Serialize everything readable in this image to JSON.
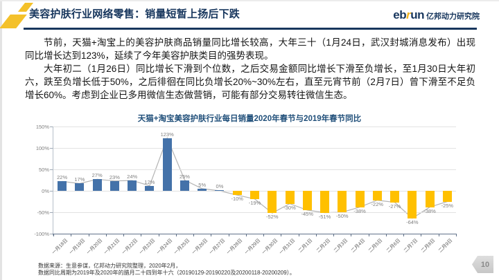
{
  "header": {
    "title": "美容护肤行业网络零售：销量短暂上扬后下跌",
    "brand": {
      "eb": "eb",
      "r": "r",
      "un": "un",
      "cn": "亿邦动力研究院"
    }
  },
  "paragraphs": [
    "节前，天猫+淘宝上的美容护肤商品销量同比增长较高，大年三十（1月24日，武汉封城消息发布）出现同比增长达到123%，延续了今年美容护肤类目的强势表现。",
    "大年初二（1月26日）同比增长下滑到个位数，之后交易金额同比增长下滑至负增长，至1月30日大年初六，跌至负增长低于50%，之后徘徊在同比负增长20%~30%左右，直至元宵节前（2月7日）曾下滑至不足负增长60%。考虑到企业已多用微信生态做营销，可能有部分交易转往微信生态。"
  ],
  "chart_data": {
    "type": "bar",
    "title": "天猫+淘宝美容护肤行业每日销量2020年春节与2019年春节同比",
    "categories": [
      "一月18日",
      "一月19日",
      "一月20日",
      "一月21日",
      "一月22日",
      "一月23日",
      "一月24日",
      "一月25日",
      "一月26日",
      "一月27日",
      "一月28日",
      "一月29日",
      "一月30日",
      "一月31日",
      "二月1日",
      "二月2日",
      "二月3日",
      "二月4日",
      "二月5日",
      "二月6日",
      "二月7日",
      "二月8日",
      "二月9日"
    ],
    "values": [
      22,
      17,
      27,
      23,
      24,
      12,
      123,
      25,
      5,
      0,
      -10,
      -19,
      -52,
      -30,
      -45,
      -51,
      -50,
      -38,
      -22,
      -27,
      -64,
      -38,
      -25
    ],
    "overlay_line": true,
    "ylim": [
      -100,
      150
    ],
    "ytick_step": 50,
    "ytick_labels": [
      "150%",
      "100%",
      "50%",
      "0%",
      "-50%",
      "-100%"
    ],
    "grid": true,
    "legend": "none",
    "colors": {
      "positive_bar": "#4472a9",
      "negative_bar": "#ffc000",
      "line": "#b3b3b3",
      "data_label": "#7f7f7f"
    }
  },
  "footnotes": [
    "数据来源：生意参谋，亿邦动力研究院整理，2020年2月，",
    "数据同比周期为2019年及2020年的腊月二十四到年十六（20190129-20190220及20200118-20200209）。"
  ],
  "page_number": "10"
}
